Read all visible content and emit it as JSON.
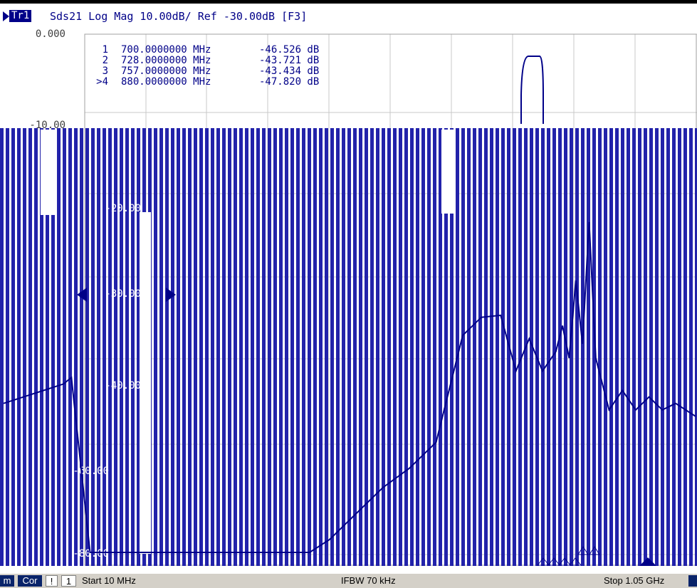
{
  "trace": {
    "tag": "Tr1",
    "title": "Sds21 Log Mag 10.00dB/ Ref -30.00dB [F3]"
  },
  "markers": [
    {
      "index": "1",
      "freq": "700.0000000 MHz",
      "value": "-46.526 dB"
    },
    {
      "index": "2",
      "freq": "728.0000000 MHz",
      "value": "-43.721 dB"
    },
    {
      "index": "3",
      "freq": "757.0000000 MHz",
      "value": "-43.434 dB"
    },
    {
      "index": ">4",
      "freq": "880.0000000 MHz",
      "value": "-47.820 dB"
    }
  ],
  "status": {
    "m_label": "m",
    "cor_label": "Cor",
    "warn_label": "!",
    "channel_label": "1",
    "start": "Start 10 MHz",
    "ifbw": "IFBW 70 kHz",
    "stop": "Stop 1.05 GHz"
  },
  "colors": {
    "trace": "#000088",
    "grid": "#c8c8c8",
    "stripe": "#2222aa",
    "statusbar": "#d4d0c8"
  },
  "chart_data": {
    "type": "line",
    "xlabel": "",
    "ylabel": "",
    "xlim": [
      10,
      1050
    ],
    "ylim": [
      -80,
      0
    ],
    "y_ticks": [
      "0.000",
      "-10.00",
      "-20.00",
      "-30.00",
      "-40.00",
      "-60.00",
      "-80.00"
    ],
    "series": [
      {
        "x": [
          10,
          40,
          70,
          100,
          112,
          140,
          200,
          300,
          400,
          470,
          500,
          540,
          580,
          620,
          660,
          700,
          728,
          757,
          780,
          800,
          820,
          840,
          850,
          860,
          870,
          880,
          890,
          900,
          920,
          940,
          960,
          980,
          1000,
          1020,
          1050
        ],
        "y": [
          -57,
          -56,
          -55,
          -54,
          -53,
          -80,
          -80,
          -80,
          -80,
          -80,
          -78,
          -74,
          -70,
          -67,
          -63,
          -46.5,
          -43.7,
          -43.4,
          -52,
          -47,
          -52,
          -49,
          -45,
          -50,
          -38,
          -47.8,
          -29,
          -50,
          -58,
          -55,
          -58,
          -56,
          -58,
          -57,
          -59
        ]
      }
    ]
  }
}
